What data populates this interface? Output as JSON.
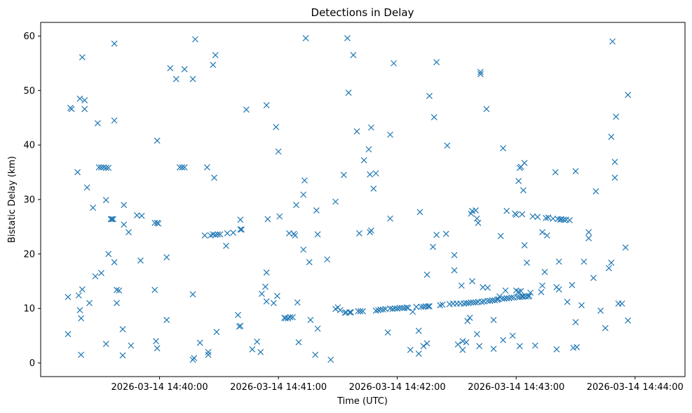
{
  "chart_data": {
    "type": "scatter",
    "title": "Detections in Delay",
    "xlabel": "Time (UTC)",
    "ylabel": "Bistatic Delay (km)",
    "marker": "x",
    "color": "#1f77b4",
    "grid": false,
    "x_unit": "minutes since 2026-03-14 14:39:00",
    "xlim": [
      0.0,
      5.42
    ],
    "ylim": [
      -2.5,
      62.5
    ],
    "x_ticks": [
      {
        "value": 1,
        "label": "2026-03-14 14:40:00"
      },
      {
        "value": 2,
        "label": "2026-03-14 14:41:00"
      },
      {
        "value": 3,
        "label": "2026-03-14 14:42:00"
      },
      {
        "value": 4,
        "label": "2026-03-14 14:43:00"
      },
      {
        "value": 5,
        "label": "2026-03-14 14:44:00"
      }
    ],
    "y_ticks": [
      {
        "value": 0,
        "label": "0"
      },
      {
        "value": 10,
        "label": "10"
      },
      {
        "value": 20,
        "label": "20"
      },
      {
        "value": 30,
        "label": "30"
      },
      {
        "value": 40,
        "label": "40"
      },
      {
        "value": 50,
        "label": "50"
      },
      {
        "value": 60,
        "label": "60"
      }
    ],
    "points": [
      [
        0.23,
        5.3
      ],
      [
        0.23,
        12.1
      ],
      [
        0.25,
        46.8
      ],
      [
        0.26,
        46.6
      ],
      [
        0.31,
        35.0
      ],
      [
        0.32,
        12.4
      ],
      [
        0.33,
        9.7
      ],
      [
        0.34,
        8.2
      ],
      [
        0.33,
        48.5
      ],
      [
        0.35,
        13.5
      ],
      [
        0.34,
        1.5
      ],
      [
        0.35,
        56.1
      ],
      [
        0.37,
        48.2
      ],
      [
        0.37,
        46.6
      ],
      [
        0.39,
        32.2
      ],
      [
        0.41,
        11.0
      ],
      [
        0.44,
        28.5
      ],
      [
        0.46,
        15.9
      ],
      [
        0.48,
        44.0
      ],
      [
        0.49,
        35.9
      ],
      [
        0.51,
        16.5
      ],
      [
        0.51,
        35.9
      ],
      [
        0.53,
        35.9
      ],
      [
        0.55,
        35.8
      ],
      [
        0.55,
        3.5
      ],
      [
        0.55,
        29.9
      ],
      [
        0.57,
        35.8
      ],
      [
        0.57,
        20.0
      ],
      [
        0.59,
        26.4
      ],
      [
        0.6,
        26.4
      ],
      [
        0.61,
        26.4
      ],
      [
        0.62,
        44.5
      ],
      [
        0.62,
        18.5
      ],
      [
        0.62,
        58.6
      ],
      [
        0.64,
        11.0
      ],
      [
        0.64,
        13.4
      ],
      [
        0.66,
        13.3
      ],
      [
        0.69,
        6.2
      ],
      [
        0.69,
        1.4
      ],
      [
        0.7,
        25.4
      ],
      [
        0.7,
        29.0
      ],
      [
        0.74,
        24.0
      ],
      [
        0.76,
        3.2
      ],
      [
        0.81,
        27.1
      ],
      [
        0.84,
        18.8
      ],
      [
        0.85,
        27.0
      ],
      [
        0.96,
        25.7
      ],
      [
        0.96,
        13.4
      ],
      [
        0.97,
        4.0
      ],
      [
        0.98,
        25.7
      ],
      [
        0.98,
        2.7
      ],
      [
        0.99,
        25.6
      ],
      [
        0.98,
        40.8
      ],
      [
        1.06,
        19.4
      ],
      [
        1.06,
        7.9
      ],
      [
        1.09,
        54.1
      ],
      [
        1.14,
        52.1
      ],
      [
        1.17,
        35.9
      ],
      [
        1.19,
        35.9
      ],
      [
        1.21,
        53.9
      ],
      [
        1.21,
        35.9
      ],
      [
        1.28,
        52.1
      ],
      [
        1.28,
        0.6
      ],
      [
        1.29,
        0.9
      ],
      [
        1.28,
        12.6
      ],
      [
        1.3,
        59.4
      ],
      [
        1.34,
        3.7
      ],
      [
        1.38,
        23.4
      ],
      [
        1.4,
        35.9
      ],
      [
        1.41,
        1.5
      ],
      [
        1.41,
        2.0
      ],
      [
        1.43,
        23.4
      ],
      [
        1.45,
        23.6
      ],
      [
        1.45,
        54.7
      ],
      [
        1.46,
        34.0
      ],
      [
        1.47,
        23.5
      ],
      [
        1.47,
        56.5
      ],
      [
        1.48,
        5.7
      ],
      [
        1.49,
        23.6
      ],
      [
        1.51,
        23.6
      ],
      [
        1.56,
        21.5
      ],
      [
        1.57,
        23.8
      ],
      [
        1.62,
        23.9
      ],
      [
        1.66,
        8.8
      ],
      [
        1.67,
        6.7
      ],
      [
        1.68,
        6.8
      ],
      [
        1.68,
        24.5
      ],
      [
        1.68,
        26.3
      ],
      [
        1.69,
        24.5
      ],
      [
        1.73,
        46.5
      ],
      [
        1.78,
        2.5
      ],
      [
        1.82,
        3.9
      ],
      [
        1.85,
        2.0
      ],
      [
        1.86,
        12.7
      ],
      [
        1.89,
        14.0
      ],
      [
        1.9,
        47.3
      ],
      [
        1.9,
        16.6
      ],
      [
        1.9,
        11.3
      ],
      [
        1.91,
        26.4
      ],
      [
        1.96,
        11.0
      ],
      [
        1.98,
        43.3
      ],
      [
        1.99,
        12.3
      ],
      [
        2.0,
        38.8
      ],
      [
        2.01,
        26.9
      ],
      [
        2.05,
        8.3
      ],
      [
        2.06,
        8.2
      ],
      [
        2.08,
        8.2
      ],
      [
        2.09,
        23.8
      ],
      [
        2.1,
        8.4
      ],
      [
        2.12,
        8.4
      ],
      [
        2.13,
        23.7
      ],
      [
        2.14,
        23.4
      ],
      [
        2.15,
        29.0
      ],
      [
        2.16,
        11.1
      ],
      [
        2.17,
        3.8
      ],
      [
        2.21,
        20.8
      ],
      [
        2.21,
        30.9
      ],
      [
        2.22,
        33.5
      ],
      [
        2.23,
        59.6
      ],
      [
        2.26,
        18.5
      ],
      [
        2.27,
        7.9
      ],
      [
        2.31,
        1.5
      ],
      [
        2.32,
        28.0
      ],
      [
        2.33,
        23.6
      ],
      [
        2.33,
        6.3
      ],
      [
        2.41,
        19.0
      ],
      [
        2.44,
        0.6
      ],
      [
        2.48,
        29.6
      ],
      [
        2.48,
        9.9
      ],
      [
        2.5,
        10.2
      ],
      [
        2.52,
        9.7
      ],
      [
        2.55,
        34.5
      ],
      [
        2.56,
        9.2
      ],
      [
        2.57,
        9.3
      ],
      [
        2.58,
        59.6
      ],
      [
        2.59,
        49.6
      ],
      [
        2.6,
        9.3
      ],
      [
        2.61,
        9.3
      ],
      [
        2.63,
        56.5
      ],
      [
        2.66,
        42.5
      ],
      [
        2.67,
        9.5
      ],
      [
        2.68,
        23.8
      ],
      [
        2.69,
        9.5
      ],
      [
        2.71,
        9.5
      ],
      [
        2.72,
        37.2
      ],
      [
        2.76,
        39.2
      ],
      [
        2.77,
        34.6
      ],
      [
        2.77,
        24.0
      ],
      [
        2.78,
        43.2
      ],
      [
        2.78,
        24.3
      ],
      [
        2.8,
        32.0
      ],
      [
        2.82,
        34.8
      ],
      [
        2.82,
        9.6
      ],
      [
        2.84,
        9.7
      ],
      [
        2.86,
        9.8
      ],
      [
        2.88,
        9.8
      ],
      [
        2.9,
        9.9
      ],
      [
        2.92,
        5.6
      ],
      [
        2.94,
        10.0
      ],
      [
        2.94,
        26.5
      ],
      [
        2.94,
        41.9
      ],
      [
        2.96,
        9.9
      ],
      [
        2.97,
        55.0
      ],
      [
        2.98,
        10.0
      ],
      [
        3.0,
        10.0
      ],
      [
        3.02,
        10.1
      ],
      [
        3.04,
        10.1
      ],
      [
        3.06,
        10.1
      ],
      [
        3.08,
        10.2
      ],
      [
        3.09,
        10.1
      ],
      [
        3.11,
        2.4
      ],
      [
        3.13,
        9.4
      ],
      [
        3.16,
        10.3
      ],
      [
        3.18,
        5.9
      ],
      [
        3.18,
        1.7
      ],
      [
        3.19,
        27.7
      ],
      [
        3.2,
        10.3
      ],
      [
        3.22,
        3.1
      ],
      [
        3.22,
        10.3
      ],
      [
        3.24,
        10.4
      ],
      [
        3.25,
        3.6
      ],
      [
        3.25,
        16.2
      ],
      [
        3.26,
        10.4
      ],
      [
        3.27,
        10.4
      ],
      [
        3.27,
        49.0
      ],
      [
        3.3,
        21.3
      ],
      [
        3.31,
        45.1
      ],
      [
        3.33,
        23.5
      ],
      [
        3.33,
        55.2
      ],
      [
        3.36,
        10.6
      ],
      [
        3.38,
        10.7
      ],
      [
        3.41,
        23.7
      ],
      [
        3.42,
        39.9
      ],
      [
        3.44,
        10.8
      ],
      [
        3.47,
        10.9
      ],
      [
        3.48,
        17.0
      ],
      [
        3.48,
        19.8
      ],
      [
        3.5,
        10.9
      ],
      [
        3.51,
        3.4
      ],
      [
        3.53,
        10.9
      ],
      [
        3.54,
        14.2
      ],
      [
        3.55,
        4.0
      ],
      [
        3.55,
        2.4
      ],
      [
        3.56,
        10.9
      ],
      [
        3.58,
        3.8
      ],
      [
        3.58,
        11.0
      ],
      [
        3.59,
        7.7
      ],
      [
        3.6,
        11.0
      ],
      [
        3.61,
        8.3
      ],
      [
        3.62,
        11.1
      ],
      [
        3.62,
        27.4
      ],
      [
        3.63,
        15.0
      ],
      [
        3.63,
        27.9
      ],
      [
        3.64,
        11.1
      ],
      [
        3.66,
        28.0
      ],
      [
        3.66,
        11.1
      ],
      [
        3.67,
        26.5
      ],
      [
        3.67,
        5.3
      ],
      [
        3.68,
        25.7
      ],
      [
        3.68,
        11.2
      ],
      [
        3.69,
        3.1
      ],
      [
        3.7,
        53.4
      ],
      [
        3.7,
        53.0
      ],
      [
        3.71,
        11.2
      ],
      [
        3.72,
        13.9
      ],
      [
        3.73,
        11.3
      ],
      [
        3.75,
        46.6
      ],
      [
        3.76,
        13.8
      ],
      [
        3.76,
        11.4
      ],
      [
        3.78,
        11.4
      ],
      [
        3.8,
        11.5
      ],
      [
        3.81,
        2.6
      ],
      [
        3.81,
        7.9
      ],
      [
        3.82,
        11.5
      ],
      [
        3.84,
        11.6
      ],
      [
        3.85,
        11.7
      ],
      [
        3.86,
        12.2
      ],
      [
        3.87,
        23.3
      ],
      [
        3.88,
        11.8
      ],
      [
        3.89,
        39.4
      ],
      [
        3.89,
        4.2
      ],
      [
        3.9,
        11.8
      ],
      [
        3.91,
        13.3
      ],
      [
        3.92,
        11.9
      ],
      [
        3.92,
        27.9
      ],
      [
        3.94,
        11.9
      ],
      [
        3.96,
        12.0
      ],
      [
        3.97,
        5.0
      ],
      [
        3.98,
        12.0
      ],
      [
        3.99,
        27.4
      ],
      [
        4.0,
        13.3
      ],
      [
        4.0,
        27.2
      ],
      [
        4.01,
        12.1
      ],
      [
        4.02,
        33.4
      ],
      [
        4.02,
        13.1
      ],
      [
        4.03,
        35.8
      ],
      [
        4.03,
        3.1
      ],
      [
        4.03,
        12.1
      ],
      [
        4.04,
        36.0
      ],
      [
        4.04,
        13.2
      ],
      [
        4.05,
        12.2
      ],
      [
        4.05,
        27.3
      ],
      [
        4.06,
        31.7
      ],
      [
        4.06,
        12.2
      ],
      [
        4.07,
        36.7
      ],
      [
        4.07,
        21.6
      ],
      [
        4.08,
        12.2
      ],
      [
        4.09,
        18.4
      ],
      [
        4.1,
        12.2
      ],
      [
        4.11,
        12.3
      ],
      [
        4.12,
        12.9
      ],
      [
        4.14,
        26.9
      ],
      [
        4.16,
        3.2
      ],
      [
        4.18,
        26.8
      ],
      [
        4.21,
        13.0
      ],
      [
        4.22,
        14.2
      ],
      [
        4.22,
        24.0
      ],
      [
        4.24,
        16.7
      ],
      [
        4.25,
        26.6
      ],
      [
        4.26,
        23.4
      ],
      [
        4.27,
        26.7
      ],
      [
        4.31,
        26.5
      ],
      [
        4.33,
        35.0
      ],
      [
        4.34,
        2.5
      ],
      [
        4.34,
        13.9
      ],
      [
        4.35,
        26.4
      ],
      [
        4.36,
        18.6
      ],
      [
        4.36,
        13.5
      ],
      [
        4.37,
        26.3
      ],
      [
        4.38,
        26.4
      ],
      [
        4.4,
        26.3
      ],
      [
        4.42,
        26.3
      ],
      [
        4.43,
        11.2
      ],
      [
        4.45,
        26.2
      ],
      [
        4.47,
        14.3
      ],
      [
        4.48,
        2.8
      ],
      [
        4.5,
        7.5
      ],
      [
        4.5,
        35.2
      ],
      [
        4.51,
        2.9
      ],
      [
        4.55,
        10.6
      ],
      [
        4.57,
        18.6
      ],
      [
        4.61,
        24.0
      ],
      [
        4.61,
        22.9
      ],
      [
        4.65,
        15.6
      ],
      [
        4.67,
        31.5
      ],
      [
        4.71,
        9.6
      ],
      [
        4.75,
        6.4
      ],
      [
        4.78,
        17.4
      ],
      [
        4.8,
        41.5
      ],
      [
        4.8,
        18.4
      ],
      [
        4.81,
        59.0
      ],
      [
        4.83,
        34.0
      ],
      [
        4.83,
        36.9
      ],
      [
        4.84,
        45.2
      ],
      [
        4.86,
        10.9
      ],
      [
        4.89,
        10.9
      ],
      [
        4.92,
        21.2
      ],
      [
        4.94,
        7.8
      ],
      [
        4.94,
        49.2
      ]
    ]
  }
}
